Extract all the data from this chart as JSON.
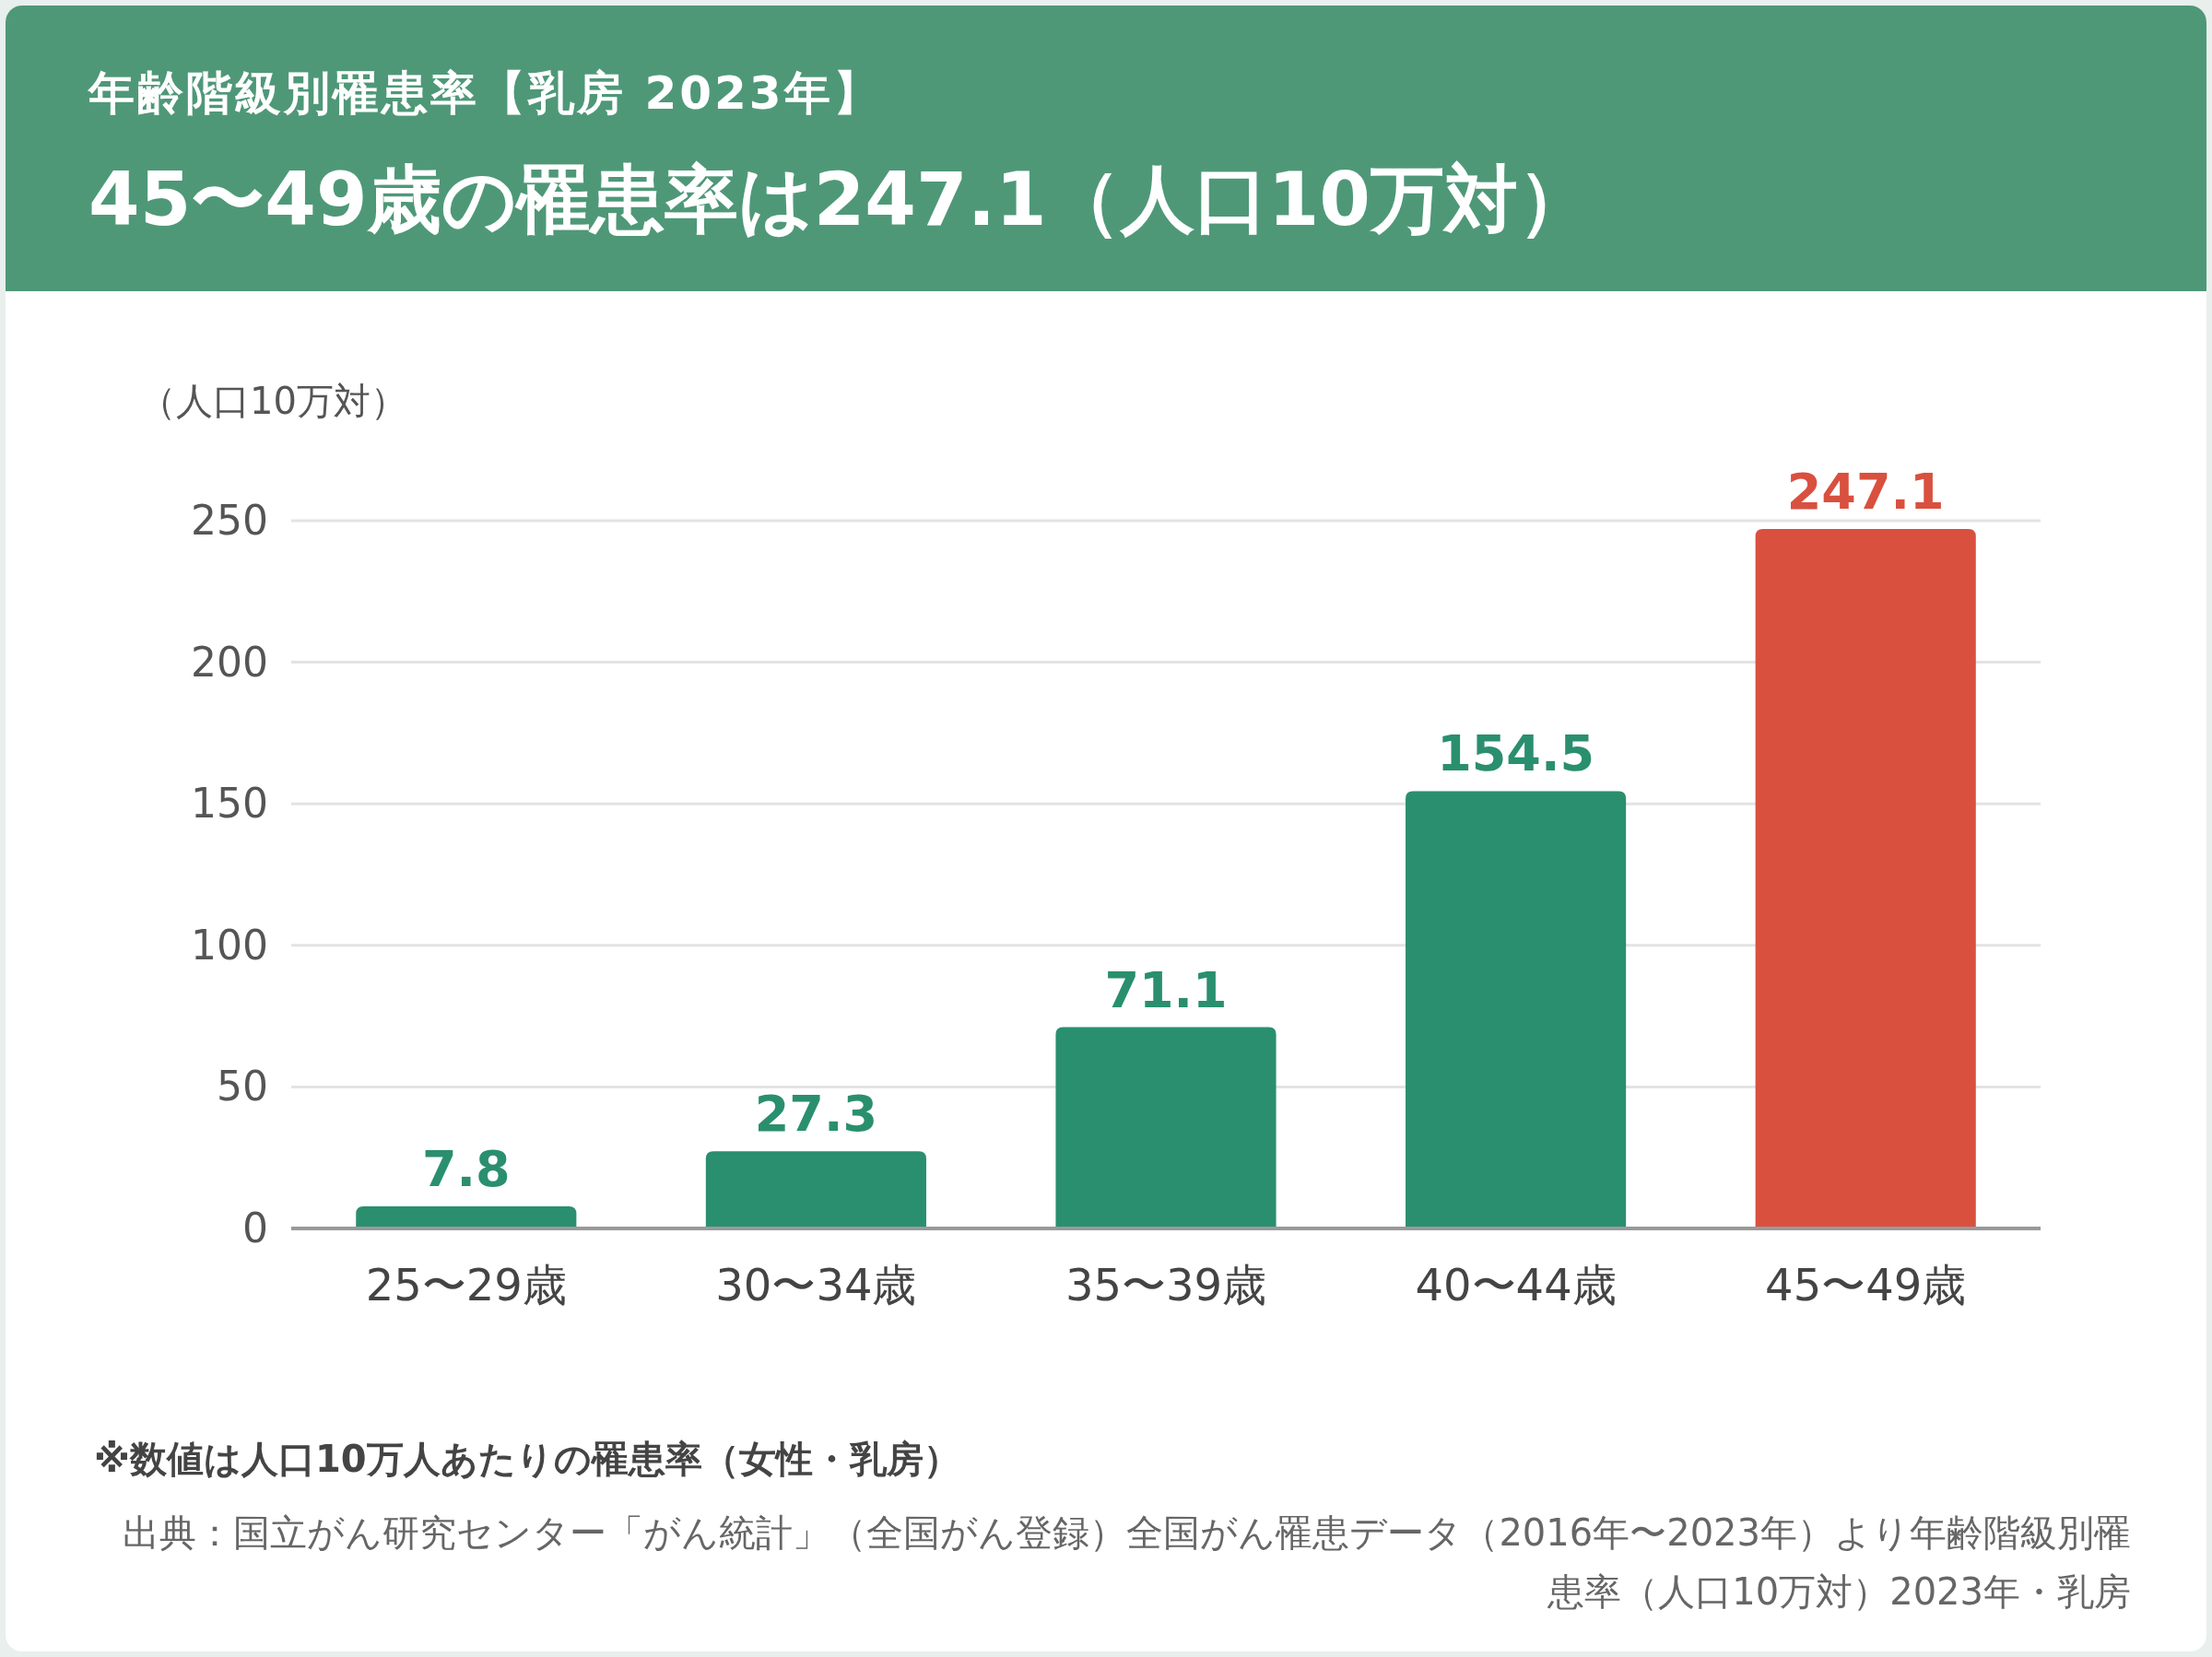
{
  "chart_data": {
    "type": "bar",
    "subtitle": "年齢階級別罹患率【乳房 2023年】",
    "title": "45〜49歳の罹患率は247.1（人口10万対）",
    "ylabel": "（人口10万対）",
    "categories": [
      "25〜29歳",
      "30〜34歳",
      "35〜39歳",
      "40〜44歳",
      "45〜49歳"
    ],
    "values": [
      7.8,
      27.3,
      71.1,
      154.5,
      247.1
    ],
    "colors": [
      "#2a8f6e",
      "#2a8f6e",
      "#2a8f6e",
      "#2a8f6e",
      "#d9503f"
    ],
    "ylim": [
      0,
      250
    ],
    "yticks": [
      0,
      50,
      100,
      150,
      200,
      250
    ],
    "grid": "y",
    "data_labels": true,
    "annotations": [
      "※数値は人口10万人あたりの罹患率（女性・乳房）",
      "出典：国立がん研究センター「がん統計」（全国がん登録）全国がん罹患データ（2016年〜2023年）より年齢階級別罹患率（人口10万対）2023年・乳房"
    ]
  }
}
